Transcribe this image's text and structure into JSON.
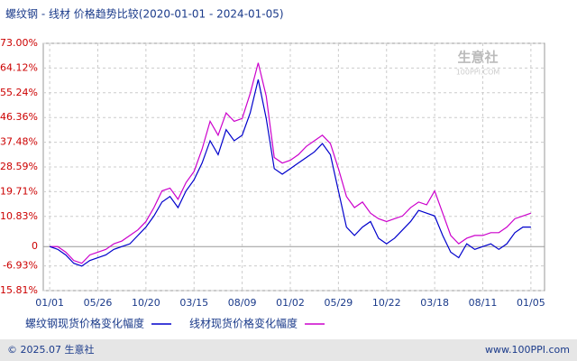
{
  "chart_data": {
    "type": "line",
    "title": "螺纹钢 - 线材 价格趋势比较(2020-01-01 - 2024-01-05)",
    "x": [
      0,
      1,
      2,
      3,
      4,
      5,
      6,
      7,
      8,
      9,
      10,
      11,
      12,
      13,
      14,
      15,
      16,
      17,
      18,
      19,
      20,
      21,
      22,
      23,
      24,
      25,
      26,
      27,
      28,
      29,
      30,
      31,
      32,
      33,
      34,
      35,
      36,
      37,
      38,
      39,
      40,
      41,
      42,
      43,
      44,
      45,
      46,
      47,
      48,
      49,
      50,
      51,
      52,
      53,
      54,
      55,
      56,
      57,
      58,
      59,
      60
    ],
    "xlim": [
      -0.8,
      61.7
    ],
    "xticks": [
      {
        "value": 0,
        "label": "01/01"
      },
      {
        "value": 6,
        "label": "05/26"
      },
      {
        "value": 12,
        "label": "10/20"
      },
      {
        "value": 18,
        "label": "03/15"
      },
      {
        "value": 24,
        "label": "08/09"
      },
      {
        "value": 30,
        "label": "01/02"
      },
      {
        "value": 36,
        "label": "05/29"
      },
      {
        "value": 42,
        "label": "10/22"
      },
      {
        "value": 48,
        "label": "03/18"
      },
      {
        "value": 54,
        "label": "08/11"
      },
      {
        "value": 60,
        "label": "01/05"
      }
    ],
    "ylim": [
      -15.81,
      73
    ],
    "yticks": [
      {
        "value": 73,
        "label": "73.00%"
      },
      {
        "value": 64.12,
        "label": "64.12%"
      },
      {
        "value": 55.24,
        "label": "55.24%"
      },
      {
        "value": 46.36,
        "label": "46.36%"
      },
      {
        "value": 37.48,
        "label": "37.48%"
      },
      {
        "value": 28.59,
        "label": "28.59%"
      },
      {
        "value": 19.71,
        "label": "19.71%"
      },
      {
        "value": 10.83,
        "label": "10.83%"
      },
      0,
      {
        "value": -6.93,
        "label": "-6.93%"
      },
      {
        "value": -15.81,
        "label": "-15.81%"
      }
    ],
    "grid": true,
    "series": [
      {
        "name": "螺纹钢现货价格变化幅度",
        "color": "#0000cc",
        "values": [
          0,
          -1,
          -3,
          -6,
          -7,
          -5,
          -4,
          -3,
          -1,
          0,
          1,
          4,
          7,
          11,
          16,
          18,
          14,
          20,
          24,
          30,
          38,
          33,
          42,
          38,
          40,
          48,
          60,
          46,
          28,
          26,
          28,
          30,
          32,
          34,
          37,
          33,
          20,
          7,
          4,
          7,
          9,
          3,
          1,
          3,
          6,
          9,
          13,
          12,
          11,
          4,
          -2,
          -4,
          1,
          -1,
          0,
          1,
          -1,
          1,
          5,
          7,
          7
        ]
      },
      {
        "name": "线材现货价格变化幅度",
        "color": "#cc00cc",
        "values": [
          0,
          0,
          -2,
          -5,
          -6,
          -3,
          -2,
          -1,
          1,
          2,
          4,
          6,
          9,
          14,
          20,
          21,
          17,
          23,
          27,
          35,
          45,
          40,
          48,
          45,
          46,
          55,
          66,
          54,
          32,
          30,
          31,
          33,
          36,
          38,
          40,
          37,
          28,
          18,
          14,
          16,
          12,
          10,
          9,
          10,
          11,
          14,
          16,
          15,
          20,
          12,
          4,
          1,
          3,
          4,
          4,
          5,
          5,
          7,
          10,
          11,
          12
        ]
      }
    ],
    "watermark": "生意社",
    "watermark_sub": "100PPI.COM",
    "footer_left": "© 2025.07 生意社",
    "footer_right": "www.100PPI.com"
  }
}
